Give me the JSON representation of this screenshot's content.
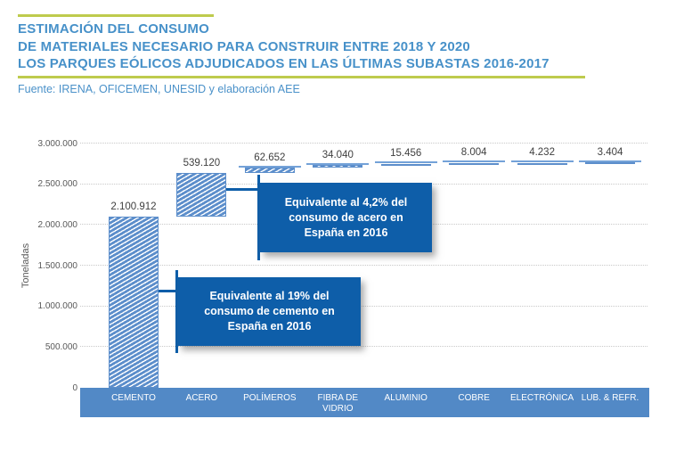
{
  "header": {
    "title_lines": [
      "ESTIMACIÓN DEL CONSUMO",
      "DE MATERIALES NECESARIO PARA CONSTRUIR ENTRE 2018 Y 2020",
      "LOS PARQUES EÓLICOS ADJUDICADOS EN LAS ÚLTIMAS SUBASTAS 2016-2017"
    ],
    "source": "Fuente: IRENA, OFICEMEN, UNESID y elaboración AEE"
  },
  "chart_data": {
    "type": "bar",
    "subtype": "waterfall-stacked-cumulative",
    "title": "Estimación del consumo de materiales necesario para construir entre 2018 y 2020 los parques eólicos adjudicados en las últimas subastas 2016-2017",
    "categories": [
      "CEMENTO",
      "ACERO",
      "POLÍMEROS",
      "FIBRA DE VIDRIO",
      "ALUMINIO",
      "COBRE",
      "ELECTRÓNICA",
      "LUB. & REFR."
    ],
    "values": [
      2100912,
      539120,
      62652,
      34040,
      15456,
      8004,
      4232,
      3404
    ],
    "value_labels": [
      "2.100.912",
      "539.120",
      "62.652",
      "34.040",
      "15.456",
      "8.004",
      "4.232",
      "3.404"
    ],
    "xlabel": "",
    "ylabel": "Toneladas",
    "ylim": [
      0,
      3000000
    ],
    "yticks": [
      0,
      500000,
      1000000,
      1500000,
      2000000,
      2500000,
      3000000
    ],
    "ytick_labels": [
      "0",
      "500.000",
      "1.000.000",
      "1.500.000",
      "2.000.000",
      "2.500.000",
      "3.000.000"
    ],
    "grid": "horizontal-dotted",
    "legend": "none",
    "annotations": [
      {
        "target": "ACERO",
        "lines": [
          "Equivalente al 4,2% del",
          "consumo de acero en",
          "España en 2016"
        ]
      },
      {
        "target": "CEMENTO",
        "lines": [
          "Equivalente al 19% del",
          "consumo de cemento en",
          "España en 2016"
        ]
      }
    ]
  },
  "colors": {
    "title_blue": "#4791C9",
    "accent_green": "#BECB4D",
    "bar_stripe_blue": "#5C8ECB",
    "axis_band_blue": "#5289C6",
    "callout_blue": "#0E5EA9",
    "grid_gray": "#C9C9C9",
    "value_label_dark": "#3F3F3F",
    "tick_gray": "#595959"
  }
}
